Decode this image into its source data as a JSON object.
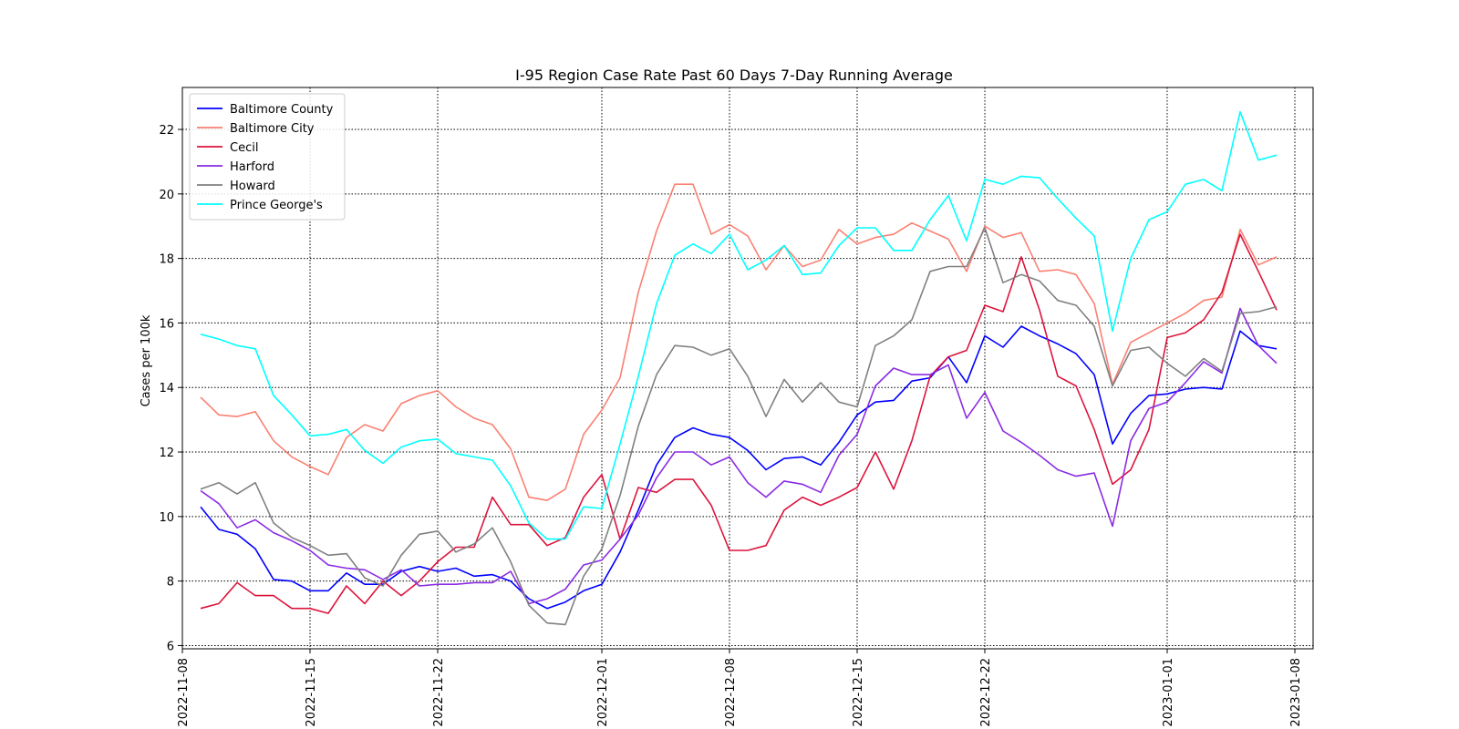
{
  "chart_data": {
    "type": "line",
    "title": "I-95 Region Case Rate  Past 60 Days 7-Day Running Average",
    "xlabel": "",
    "ylabel": "Cases per 100k",
    "grid": true,
    "legend_position": "top-left",
    "x_start_date": "2022-11-09",
    "x_end_date": "2023-01-07",
    "xlim": [
      "2022-11-08",
      "2023-01-09"
    ],
    "ylim": [
      5.9,
      23.3
    ],
    "x_ticks": [
      "2022-11-08",
      "2022-11-15",
      "2022-11-22",
      "2022-12-01",
      "2022-12-08",
      "2022-12-15",
      "2022-12-22",
      "2023-01-01",
      "2023-01-08"
    ],
    "y_ticks": [
      6,
      8,
      10,
      12,
      14,
      16,
      18,
      20,
      22
    ],
    "series": [
      {
        "name": "Baltimore County",
        "color": "#0000ff",
        "values": [
          10.3,
          9.6,
          9.45,
          9.0,
          8.05,
          8.0,
          7.7,
          7.7,
          8.25,
          7.9,
          7.9,
          8.3,
          8.45,
          8.3,
          8.4,
          8.15,
          8.2,
          8.0,
          7.45,
          7.15,
          7.35,
          7.7,
          7.9,
          8.9,
          10.2,
          11.6,
          12.45,
          12.75,
          12.55,
          12.45,
          12.05,
          11.45,
          11.8,
          11.85,
          11.6,
          12.3,
          13.15,
          13.55,
          13.6,
          14.2,
          14.3,
          14.95,
          14.15,
          15.6,
          15.25,
          15.9,
          15.6,
          15.35,
          15.05,
          14.4,
          12.25,
          13.2,
          13.75,
          13.8,
          13.95,
          14.0,
          13.95,
          15.75,
          15.3,
          15.2
        ]
      },
      {
        "name": "Baltimore City",
        "color": "#fa8072",
        "values": [
          13.7,
          13.15,
          13.1,
          13.25,
          12.35,
          11.85,
          11.55,
          11.3,
          12.45,
          12.85,
          12.65,
          13.5,
          13.75,
          13.9,
          13.4,
          13.05,
          12.85,
          12.1,
          10.6,
          10.5,
          10.85,
          12.55,
          13.3,
          14.3,
          16.95,
          18.85,
          20.3,
          20.3,
          18.75,
          19.05,
          18.7,
          17.65,
          18.4,
          17.75,
          17.95,
          18.9,
          18.45,
          18.65,
          18.75,
          19.1,
          18.85,
          18.6,
          17.6,
          19.0,
          18.65,
          18.8,
          17.6,
          17.65,
          17.5,
          16.6,
          14.1,
          15.4,
          15.7,
          16.0,
          16.3,
          16.7,
          16.8,
          18.9,
          17.8,
          18.05
        ]
      },
      {
        "name": "Cecil",
        "color": "#dc143c",
        "values": [
          7.15,
          7.3,
          7.95,
          7.55,
          7.55,
          7.15,
          7.15,
          7.0,
          7.85,
          7.3,
          8.0,
          7.55,
          8.0,
          8.6,
          9.05,
          9.05,
          10.6,
          9.75,
          9.75,
          9.1,
          9.35,
          10.6,
          11.3,
          9.3,
          10.9,
          10.75,
          11.15,
          11.15,
          10.35,
          8.95,
          8.95,
          9.1,
          10.2,
          10.6,
          10.35,
          10.6,
          10.9,
          12.0,
          10.85,
          12.35,
          14.35,
          14.95,
          15.15,
          16.55,
          16.35,
          18.05,
          16.4,
          14.35,
          14.05,
          12.7,
          11.0,
          11.45,
          12.7,
          15.55,
          15.7,
          16.1,
          16.95,
          18.75,
          17.6,
          16.4
        ]
      },
      {
        "name": "Harford",
        "color": "#8a2be2",
        "values": [
          10.8,
          10.4,
          9.65,
          9.9,
          9.5,
          9.25,
          8.95,
          8.5,
          8.4,
          8.35,
          8.05,
          8.35,
          7.85,
          7.9,
          7.9,
          7.95,
          7.95,
          8.3,
          7.3,
          7.45,
          7.75,
          8.5,
          8.65,
          9.3,
          10.05,
          11.2,
          12.0,
          12.0,
          11.6,
          11.85,
          11.05,
          10.6,
          11.1,
          11.0,
          10.75,
          11.9,
          12.55,
          14.05,
          14.6,
          14.4,
          14.4,
          14.7,
          13.05,
          13.85,
          12.65,
          12.3,
          11.9,
          11.45,
          11.25,
          11.35,
          9.7,
          12.35,
          13.35,
          13.55,
          14.15,
          14.8,
          14.45,
          16.45,
          15.3,
          14.75
        ]
      },
      {
        "name": "Howard",
        "color": "#808080",
        "values": [
          10.85,
          11.05,
          10.7,
          11.05,
          9.8,
          9.35,
          9.1,
          8.8,
          8.85,
          8.1,
          7.85,
          8.8,
          9.45,
          9.55,
          8.9,
          9.15,
          9.65,
          8.6,
          7.25,
          6.7,
          6.65,
          8.15,
          9.0,
          10.65,
          12.8,
          14.4,
          15.3,
          15.25,
          15.0,
          15.2,
          14.35,
          13.1,
          14.25,
          13.55,
          14.15,
          13.55,
          13.4,
          15.3,
          15.6,
          16.1,
          17.6,
          17.75,
          17.75,
          18.95,
          17.25,
          17.5,
          17.3,
          16.7,
          16.55,
          15.9,
          14.05,
          15.15,
          15.25,
          14.75,
          14.35,
          14.9,
          14.5,
          16.3,
          16.35,
          16.5
        ]
      },
      {
        "name": "Prince George's",
        "color": "#00ffff",
        "values": [
          15.65,
          15.5,
          15.3,
          15.2,
          13.75,
          13.15,
          12.5,
          12.55,
          12.7,
          12.05,
          11.65,
          12.15,
          12.35,
          12.4,
          11.95,
          11.85,
          11.75,
          10.95,
          9.8,
          9.3,
          9.3,
          10.3,
          10.25,
          12.25,
          14.35,
          16.6,
          18.1,
          18.45,
          18.15,
          18.75,
          17.65,
          17.95,
          18.4,
          17.5,
          17.55,
          18.4,
          18.95,
          18.95,
          18.25,
          18.25,
          19.2,
          19.95,
          18.55,
          20.45,
          20.3,
          20.55,
          20.5,
          19.85,
          19.25,
          18.7,
          15.75,
          18.0,
          19.2,
          19.45,
          20.3,
          20.45,
          20.1,
          22.55,
          21.05,
          21.2
        ]
      }
    ]
  }
}
